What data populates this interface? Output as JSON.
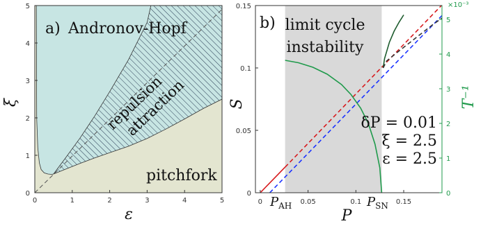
{
  "chart_data": [
    {
      "type": "area",
      "panel_label": "a)",
      "xlabel": "ε",
      "ylabel": "ξ",
      "xlim": [
        0,
        5
      ],
      "ylim": [
        0,
        5
      ],
      "x_ticks": [
        "0",
        "1",
        "2",
        "3",
        "4",
        "5"
      ],
      "y_ticks": [
        "0",
        "1",
        "2",
        "3",
        "4",
        "5"
      ],
      "regions": [
        {
          "name": "Andronov-Hopf",
          "color": "#c7e5e3"
        },
        {
          "name": "pitchfork",
          "color": "#e3e5d0"
        },
        {
          "name": "hatched",
          "color": "#c7e5e3"
        }
      ],
      "hatch_labels": [
        "repulsion",
        "attraction"
      ],
      "boundary_lower": {
        "x": [
          0.5,
          0.8,
          1.2,
          1.6,
          2.0,
          2.5,
          3.0,
          3.5,
          4.0,
          4.5,
          5.0
        ],
        "y": [
          0.5,
          0.62,
          0.78,
          0.93,
          1.07,
          1.24,
          1.45,
          1.7,
          1.97,
          2.25,
          2.5
        ]
      },
      "boundary_upper": {
        "x": [
          0.5,
          0.8,
          1.2,
          1.6,
          2.0,
          2.5,
          3.0,
          3.1
        ],
        "y": [
          0.5,
          0.9,
          1.45,
          2.05,
          2.7,
          3.55,
          4.55,
          5.0
        ]
      },
      "boundary_left": {
        "x": [
          0.04,
          0.05,
          0.08,
          0.12,
          0.17,
          0.25,
          0.35,
          0.45,
          0.5
        ],
        "y": [
          5.0,
          2.0,
          1.2,
          0.8,
          0.62,
          0.53,
          0.5,
          0.49,
          0.5
        ]
      },
      "dashed_line": {
        "x": [
          0,
          5
        ],
        "y": [
          0,
          4.9
        ]
      }
    },
    {
      "type": "line",
      "panel_label": "b)",
      "xlabel": "P",
      "ylabel": "S",
      "y2label": "T⁻¹",
      "y2_multiplier": "×10⁻³",
      "xlim": [
        -0.005,
        0.19
      ],
      "ylim": [
        0,
        0.15
      ],
      "y2lim": [
        0,
        0.0054
      ],
      "x_ticks": [
        "0",
        "0.05",
        "0.1",
        "0.15"
      ],
      "y_ticks": [
        "0",
        "0.05",
        "0.1",
        "0.15"
      ],
      "y2_ticks": [
        "0",
        "1",
        "2",
        "3",
        "4",
        "5"
      ],
      "special_ticks": [
        "P_AH",
        "P_SN"
      ],
      "shaded_band": {
        "label": [
          "limit cycle",
          "instability"
        ],
        "x": [
          0.026,
          0.127
        ]
      },
      "parameters": [
        "δP = 0.01",
        "ξ = 2.5",
        "ε = 2.5"
      ],
      "series": [
        {
          "color": "#d7191c",
          "style": "solid",
          "x": [
            0,
            0.026
          ],
          "y": [
            0,
            0.0205
          ]
        },
        {
          "color": "#d7191c",
          "style": "dashed",
          "x": [
            0.026,
            0.19
          ],
          "y": [
            0.0205,
            0.1505
          ]
        },
        {
          "color": "#1a33ff",
          "style": "dashed",
          "x": [
            0.01,
            0.19
          ],
          "y": [
            0,
            0.142
          ]
        },
        {
          "color": "#1e5c2e",
          "style": "solid",
          "x": [
            0.1285,
            0.13,
            0.135,
            0.14,
            0.145,
            0.15
          ],
          "y": [
            0.1,
            0.1075,
            0.1205,
            0.1295,
            0.1365,
            0.1425
          ]
        },
        {
          "color": "#333333",
          "style": "dashed",
          "x": [
            0.1285,
            0.132,
            0.14,
            0.15,
            0.16,
            0.17,
            0.18,
            0.19
          ],
          "y": [
            0.1,
            0.1055,
            0.1105,
            0.1165,
            0.1225,
            0.1285,
            0.1345,
            0.14
          ]
        },
        {
          "color": "#1f9a4b",
          "style": "solid",
          "axis": "y2",
          "x": [
            0.026,
            0.04,
            0.055,
            0.07,
            0.085,
            0.095,
            0.105,
            0.113,
            0.12,
            0.125,
            0.127
          ],
          "y": [
            0.00382,
            0.00375,
            0.00362,
            0.00342,
            0.00312,
            0.00283,
            0.00244,
            0.002,
            0.0014,
            0.00072,
            0.0
          ]
        }
      ]
    }
  ]
}
